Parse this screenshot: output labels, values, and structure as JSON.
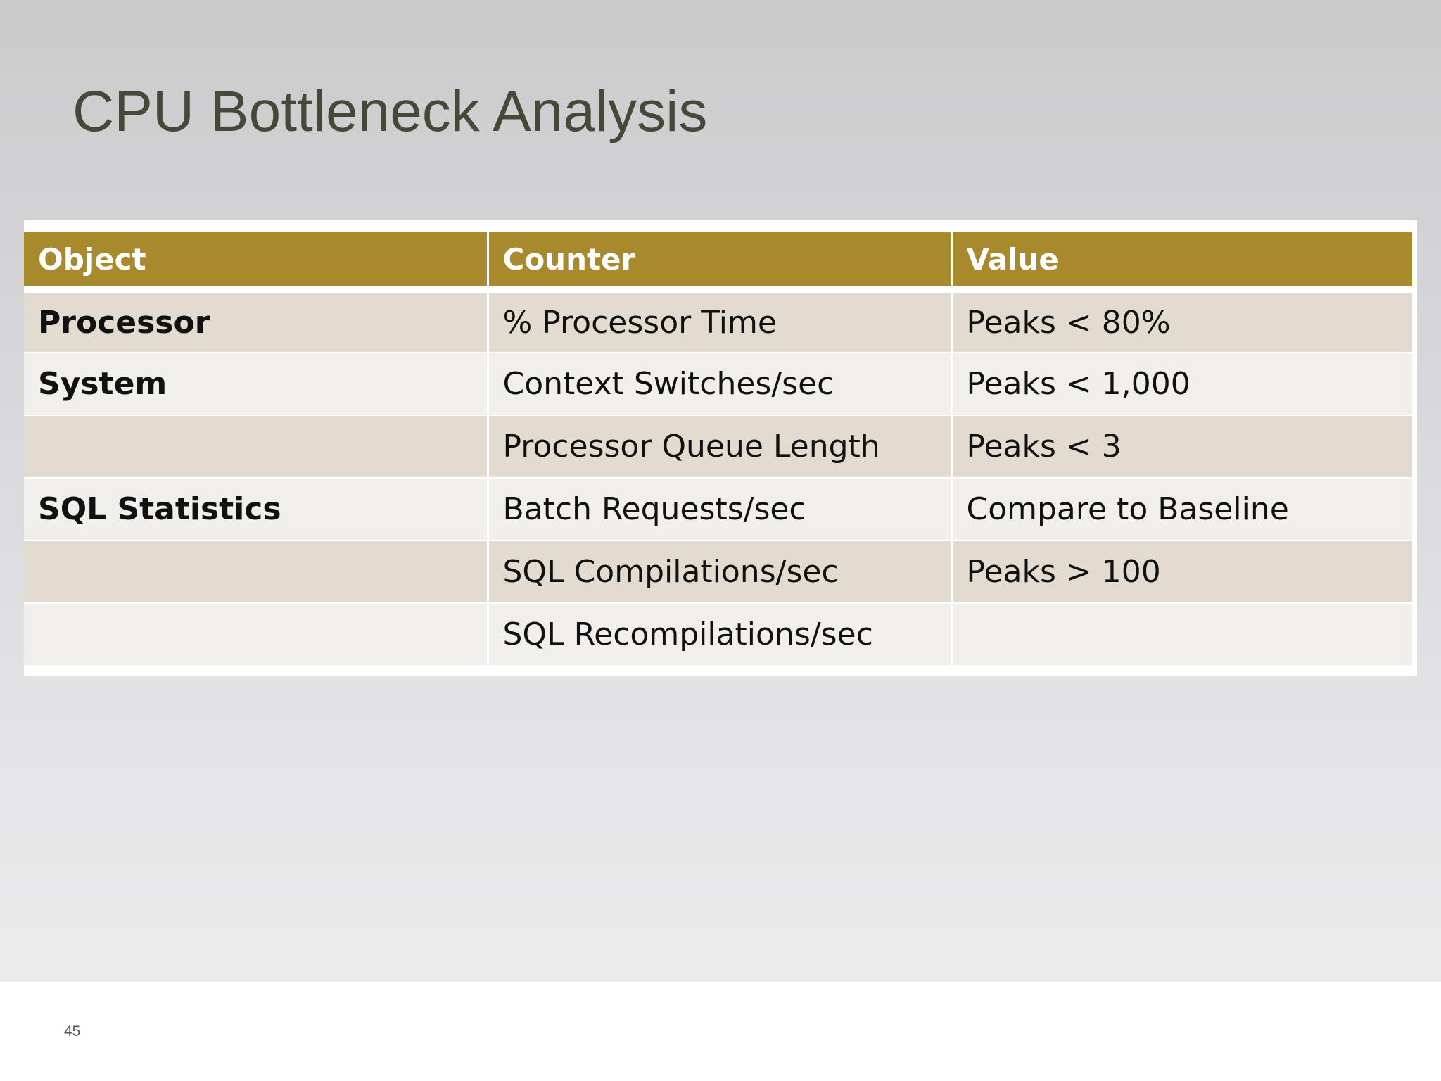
{
  "slide": {
    "title": "CPU Bottleneck Analysis",
    "page_number": "45"
  },
  "table": {
    "headers": [
      "Object",
      "Counter",
      "Value"
    ],
    "rows": [
      {
        "object": "Processor",
        "counter": "% Processor Time",
        "value": "Peaks < 80%"
      },
      {
        "object": "System",
        "counter": "Context Switches/sec",
        "value": "Peaks < 1,000"
      },
      {
        "object": "",
        "counter": "Processor Queue Length",
        "value": "Peaks < 3"
      },
      {
        "object": "SQL Statistics",
        "counter": "Batch Requests/sec",
        "value": "Compare to Baseline"
      },
      {
        "object": "",
        "counter": "SQL Compilations/sec",
        "value": "Peaks > 100"
      },
      {
        "object": "",
        "counter": "SQL Recompilations/sec",
        "value": ""
      }
    ]
  },
  "colors": {
    "header_fill": "#a68a2d",
    "row_odd_fill": "#e2dbd0",
    "row_even_fill": "#f1efeb",
    "title_text": "#484839"
  }
}
